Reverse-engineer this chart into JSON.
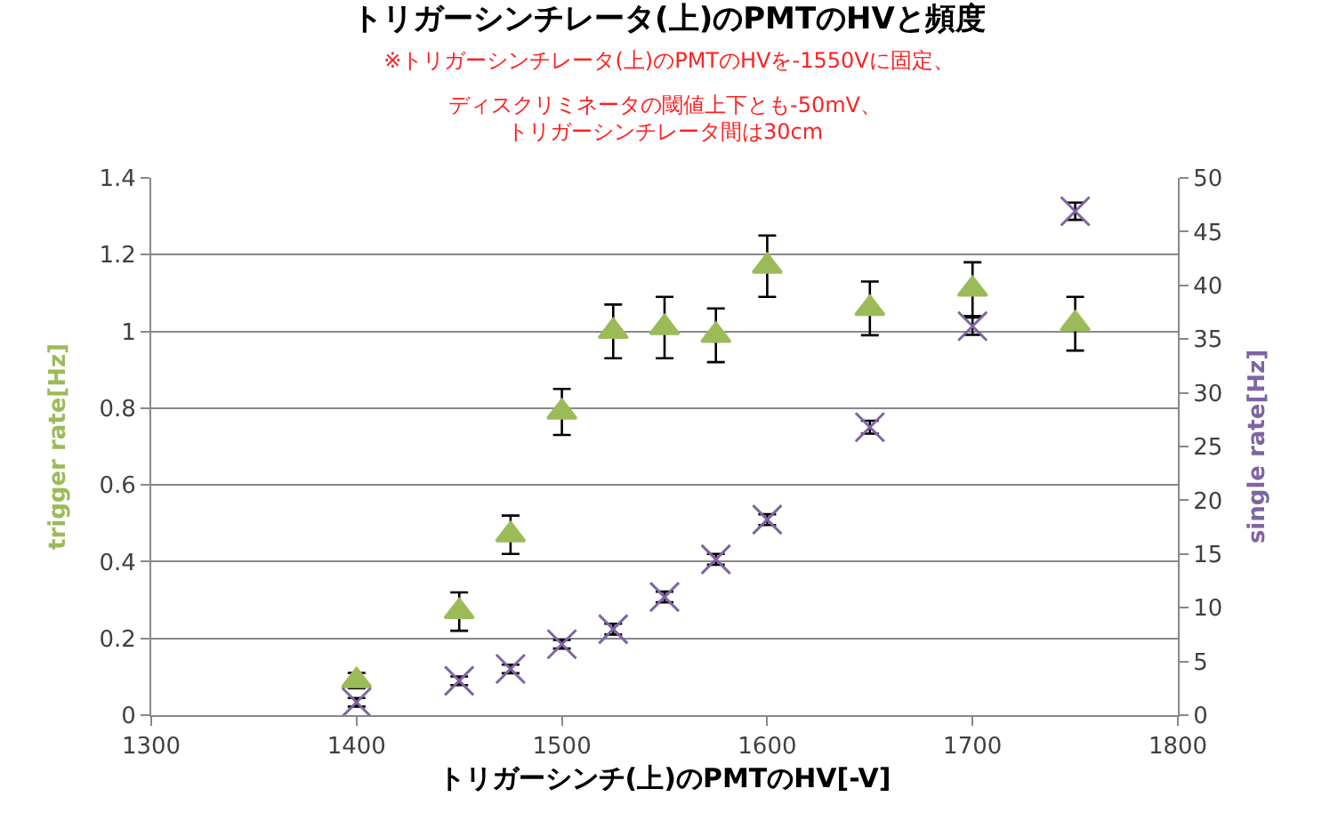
{
  "chart_data": {
    "type": "scatter",
    "title": "トリガーシンチレータ(上)のPMTのHVと頻度",
    "subtitle": "※トリガーシンチレータ(上)のPMTのHVを-1550Vに固定、",
    "annotations": [
      "ディスクリミネータの閾値上下とも-50mV、",
      "トリガーシンチレータ間は30cm"
    ],
    "xlabel": "トリガーシンチ(上)のPMTのHV[-V]",
    "ylabel": "trigger rate[Hz]",
    "y2label": "single rate[Hz]",
    "x": [
      1400,
      1450,
      1475,
      1500,
      1525,
      1550,
      1575,
      1600,
      1650,
      1700,
      1750
    ],
    "series": [
      {
        "color": "#9bbb59",
        "marker": "triangle",
        "values": [
          0.09,
          0.27,
          0.47,
          0.79,
          1.0,
          1.01,
          0.99,
          1.17,
          1.06,
          1.11,
          1.02
        ],
        "errors": [
          0.02,
          0.05,
          0.05,
          0.06,
          0.07,
          0.08,
          0.07,
          0.08,
          0.07,
          0.07,
          0.07
        ]
      },
      {
        "color": "#8064a2",
        "marker": "cross",
        "axis": "y2",
        "values": [
          1.2,
          3.2,
          4.3,
          6.6,
          8.0,
          11.0,
          14.5,
          18.2,
          26.8,
          36.2,
          46.9
        ],
        "errors": [
          0.4,
          0.4,
          0.4,
          0.4,
          0.5,
          0.5,
          0.5,
          0.5,
          0.6,
          0.8,
          0.8
        ]
      }
    ],
    "xlim": [
      1300,
      1800
    ],
    "xticks": [
      1300,
      1400,
      1500,
      1600,
      1700,
      1800
    ],
    "ylim": [
      0,
      1.4
    ],
    "yticks": [
      0,
      0.2,
      0.4,
      0.6,
      0.8,
      1,
      1.2,
      1.4
    ],
    "y2lim": [
      0,
      50
    ],
    "y2ticks": [
      0,
      5,
      10,
      15,
      20,
      25,
      30,
      35,
      40,
      45,
      50
    ],
    "grid": "y",
    "legend": false
  }
}
